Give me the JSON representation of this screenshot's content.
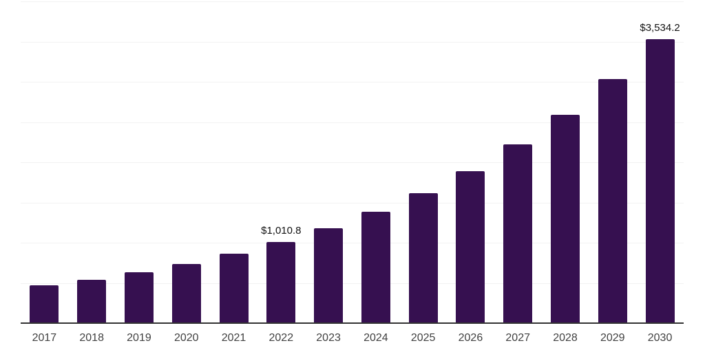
{
  "chart_data": {
    "type": "bar",
    "title": "",
    "xlabel": "",
    "ylabel": "",
    "categories": [
      "2017",
      "2018",
      "2019",
      "2020",
      "2021",
      "2022",
      "2023",
      "2024",
      "2025",
      "2026",
      "2027",
      "2028",
      "2029",
      "2030"
    ],
    "values": [
      468,
      541,
      632,
      737,
      863,
      1010.8,
      1177,
      1382,
      1615,
      1889,
      2222,
      2592,
      3032,
      3534.2
    ],
    "data_labels": [
      {
        "category": "2022",
        "text": "$1,010.8"
      },
      {
        "category": "2030",
        "text": "$3,534.2"
      }
    ],
    "ylim": [
      0,
      4000
    ],
    "gridline_values": [
      500,
      1000,
      1500,
      2000,
      2500,
      3000,
      3500,
      4000
    ],
    "grid": true,
    "legend": false,
    "y_axis_tick_labels_visible": false,
    "colors": {
      "bar": "#361050",
      "gridline": "#f2f2f2",
      "axis_line": "#333333",
      "x_tick_label": "#404040",
      "data_label": "#111111",
      "background": "#ffffff"
    }
  }
}
